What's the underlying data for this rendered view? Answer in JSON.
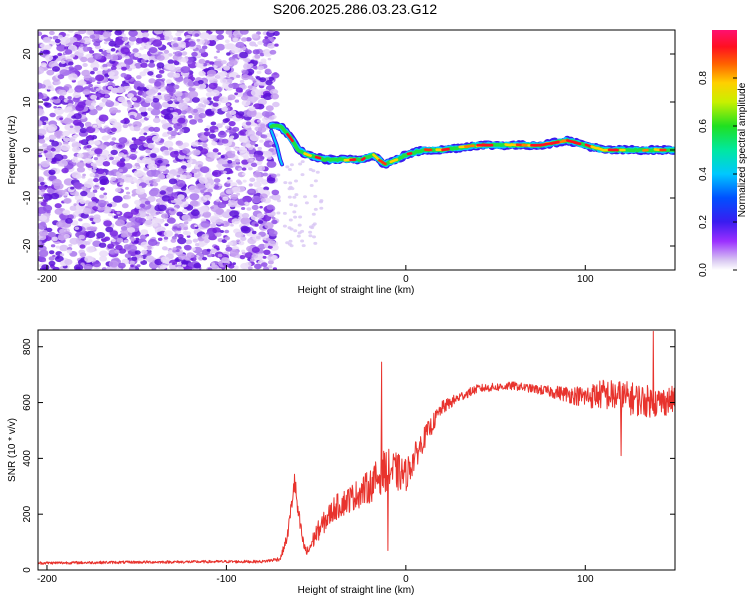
{
  "title": "S206.2025.286.03.23.G12",
  "colors": {
    "trace": "#e8332d",
    "axis": "#000000"
  },
  "chart_data": [
    {
      "type": "heatmap",
      "xlabel": "Height of straight line (km)",
      "ylabel": "Frequency (Hz)",
      "xlim": [
        -205,
        150
      ],
      "ylim": [
        -25,
        25
      ],
      "xticks": [
        -200,
        -100,
        0,
        100
      ],
      "xtick_labels": [
        "-200",
        "-100",
        "0",
        "100"
      ],
      "yticks": [
        -20,
        -10,
        0,
        10,
        20
      ],
      "ytick_labels": [
        "-20",
        "-10",
        "0",
        "10",
        "20"
      ],
      "colorbar": {
        "label": "Normalized spectral amplitude",
        "range": [
          0,
          1
        ],
        "ticks": [
          0.0,
          0.2,
          0.4,
          0.6,
          0.8
        ],
        "tick_labels": [
          "0.0",
          "0.2",
          "0.4",
          "0.6",
          "0.8"
        ]
      },
      "noise_region_km": [
        -205,
        -72
      ],
      "ridge": [
        {
          "x": -75,
          "f": 5
        },
        {
          "x": -70,
          "f": 5
        },
        {
          "x": -65,
          "f": 3
        },
        {
          "x": -60,
          "f": 0
        },
        {
          "x": -55,
          "f": -1
        },
        {
          "x": -45,
          "f": -2
        },
        {
          "x": -35,
          "f": -2
        },
        {
          "x": -25,
          "f": -2
        },
        {
          "x": -18,
          "f": -1
        },
        {
          "x": -12,
          "f": -3
        },
        {
          "x": -5,
          "f": -2
        },
        {
          "x": 0,
          "f": -1
        },
        {
          "x": 10,
          "f": 0
        },
        {
          "x": 20,
          "f": 0
        },
        {
          "x": 40,
          "f": 1
        },
        {
          "x": 60,
          "f": 1
        },
        {
          "x": 75,
          "f": 1
        },
        {
          "x": 90,
          "f": 2
        },
        {
          "x": 100,
          "f": 1
        },
        {
          "x": 110,
          "f": 0
        },
        {
          "x": 130,
          "f": 0
        },
        {
          "x": 150,
          "f": 0
        }
      ]
    },
    {
      "type": "line",
      "xlabel": "Height of straight line (km)",
      "ylabel": "SNR (10 * v/v)",
      "xlim": [
        -205,
        150
      ],
      "ylim": [
        0,
        860
      ],
      "xticks": [
        -200,
        -100,
        0,
        100
      ],
      "xtick_labels": [
        "-200",
        "-100",
        "0",
        "100"
      ],
      "yticks": [
        0,
        200,
        400,
        600,
        800
      ],
      "ytick_labels": [
        "0",
        "200",
        "400",
        "600",
        "800"
      ],
      "series": [
        {
          "name": "SNR",
          "x": [
            -205,
            -150,
            -100,
            -80,
            -70,
            -66,
            -62,
            -60,
            -57,
            -55,
            -50,
            -40,
            -30,
            -20,
            -13,
            -10,
            -5,
            0,
            10,
            20,
            30,
            40,
            50,
            60,
            70,
            80,
            90,
            100,
            110,
            120,
            130,
            140,
            150
          ],
          "y": [
            25,
            28,
            30,
            30,
            40,
            120,
            320,
            200,
            90,
            60,
            130,
            220,
            260,
            300,
            350,
            360,
            350,
            340,
            470,
            580,
            620,
            650,
            655,
            660,
            650,
            640,
            630,
            620,
            630,
            620,
            610,
            600,
            610
          ],
          "amplitude": [
            10,
            10,
            10,
            10,
            15,
            40,
            80,
            70,
            40,
            40,
            70,
            90,
            100,
            120,
            150,
            150,
            140,
            120,
            80,
            50,
            35,
            30,
            30,
            30,
            30,
            40,
            60,
            80,
            110,
            120,
            120,
            110,
            100
          ],
          "spikes": [
            {
              "x": -13.5,
              "y": 745
            },
            {
              "x": -10,
              "y": 70
            },
            {
              "x": 138,
              "y": 855
            },
            {
              "x": 120,
              "y": 410
            }
          ]
        }
      ]
    }
  ]
}
